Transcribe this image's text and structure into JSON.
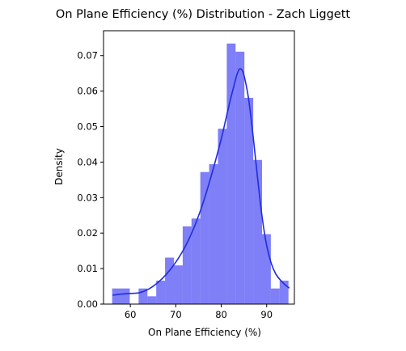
{
  "chart_data": {
    "type": "histogram",
    "title": "On Plane Efficiency (%) Distribution - Zach Liggett",
    "xlabel": "On Plane Efficiency (%)",
    "ylabel": "Density",
    "xlim": [
      54.1,
      96.1
    ],
    "ylim": [
      0.0,
      0.077
    ],
    "x_ticks": [
      60,
      70,
      80,
      90
    ],
    "x_tick_labels": [
      "60",
      "70",
      "80",
      "90"
    ],
    "y_ticks": [
      0.0,
      0.01,
      0.02,
      0.03,
      0.04,
      0.05,
      0.06,
      0.07
    ],
    "y_tick_labels": [
      "0.00",
      "0.01",
      "0.02",
      "0.03",
      "0.04",
      "0.05",
      "0.06",
      "0.07"
    ],
    "grid": false,
    "bin_width": 1.94,
    "bins": [
      {
        "x0": 56.0,
        "density": 0.0044
      },
      {
        "x0": 57.94,
        "density": 0.0044
      },
      {
        "x0": 59.88,
        "density": 0.0
      },
      {
        "x0": 61.82,
        "density": 0.0044
      },
      {
        "x0": 63.76,
        "density": 0.0022
      },
      {
        "x0": 65.7,
        "density": 0.0066
      },
      {
        "x0": 67.64,
        "density": 0.0131
      },
      {
        "x0": 69.58,
        "density": 0.0109
      },
      {
        "x0": 71.52,
        "density": 0.0219
      },
      {
        "x0": 73.46,
        "density": 0.0241
      },
      {
        "x0": 75.4,
        "density": 0.0372
      },
      {
        "x0": 77.34,
        "density": 0.0394
      },
      {
        "x0": 79.28,
        "density": 0.0494
      },
      {
        "x0": 81.22,
        "density": 0.0734
      },
      {
        "x0": 83.16,
        "density": 0.0711
      },
      {
        "x0": 85.1,
        "density": 0.0581
      },
      {
        "x0": 87.04,
        "density": 0.0406
      },
      {
        "x0": 88.98,
        "density": 0.0197
      },
      {
        "x0": 90.92,
        "density": 0.0044
      },
      {
        "x0": 92.86,
        "density": 0.0066
      }
    ],
    "kde": {
      "x": [
        56.1,
        58,
        60,
        62,
        64,
        66,
        68,
        70,
        72,
        74,
        76,
        78,
        80,
        81,
        82,
        83,
        83.5,
        84,
        84.5,
        85,
        86,
        87,
        88,
        89,
        90,
        91,
        92,
        93,
        94,
        95
      ],
      "y": [
        0.0025,
        0.0028,
        0.003,
        0.0032,
        0.0042,
        0.006,
        0.0085,
        0.0118,
        0.016,
        0.0215,
        0.0285,
        0.037,
        0.0465,
        0.052,
        0.0575,
        0.0625,
        0.0648,
        0.0662,
        0.066,
        0.0645,
        0.058,
        0.0475,
        0.0355,
        0.0245,
        0.0165,
        0.0115,
        0.0085,
        0.0068,
        0.0055,
        0.0045
      ]
    },
    "colors": {
      "bars": "#0000f0",
      "bar_opacity": 0.5,
      "kde_line": "#1f2ddc"
    }
  }
}
